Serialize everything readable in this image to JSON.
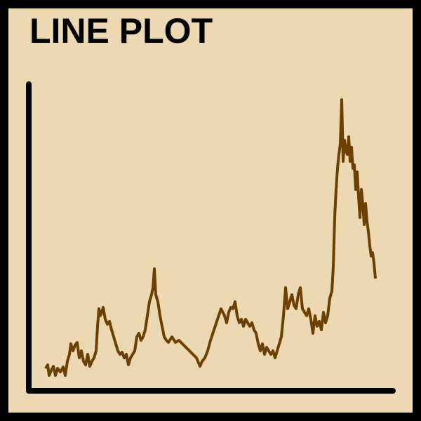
{
  "chart_data": {
    "type": "line",
    "title": "LINE PLOT",
    "color": "#6b4000",
    "xlim": [
      0,
      520
    ],
    "ylim": [
      0,
      437
    ],
    "x": [
      25,
      28,
      30,
      33,
      36,
      39,
      42,
      46,
      50,
      53,
      56,
      59,
      61,
      64,
      67,
      70,
      73,
      76,
      79,
      82,
      85,
      88,
      91,
      94,
      97,
      99,
      101,
      103,
      105,
      107,
      110,
      113,
      116,
      119,
      122,
      125,
      128,
      131,
      134,
      137,
      140,
      143,
      146,
      149,
      152,
      155,
      158,
      161,
      164,
      167,
      170,
      173,
      176,
      178,
      180,
      182,
      185,
      188,
      191,
      194,
      197,
      200,
      205,
      210,
      215,
      220,
      225,
      230,
      235,
      240,
      245,
      248,
      252,
      256,
      260,
      265,
      270,
      275,
      280,
      283,
      286,
      289,
      292,
      295,
      298,
      301,
      304,
      307,
      310,
      313,
      316,
      319,
      322,
      325,
      328,
      331,
      334,
      337,
      340,
      343,
      346,
      349,
      352,
      355,
      358,
      361,
      364,
      367,
      370,
      373,
      376,
      379,
      382,
      385,
      388,
      391,
      394,
      397,
      400,
      403,
      406,
      409,
      412,
      415,
      418,
      421,
      424,
      427,
      430,
      433,
      435,
      437,
      439,
      441,
      443,
      445,
      447,
      449,
      451,
      453,
      455,
      457,
      459,
      461,
      463,
      465,
      467,
      469,
      471,
      473,
      475,
      477,
      479,
      481,
      483,
      485,
      487,
      489,
      491,
      493,
      495
    ],
    "values": [
      32,
      37,
      22,
      29,
      35,
      22,
      32,
      27,
      34,
      22,
      42,
      52,
      67,
      57,
      65,
      69,
      47,
      57,
      42,
      37,
      52,
      35,
      42,
      47,
      57,
      92,
      117,
      107,
      112,
      119,
      102,
      95,
      99,
      87,
      77,
      67,
      57,
      52,
      55,
      47,
      52,
      37,
      47,
      52,
      57,
      77,
      82,
      72,
      77,
      87,
      107,
      127,
      137,
      147,
      174,
      137,
      127,
      107,
      92,
      77,
      72,
      69,
      77,
      69,
      72,
      67,
      62,
      57,
      52,
      47,
      35,
      42,
      47,
      57,
      72,
      87,
      102,
      117,
      107,
      97,
      112,
      119,
      117,
      127,
      107,
      97,
      102,
      92,
      102,
      97,
      92,
      97,
      87,
      82,
      67,
      57,
      67,
      52,
      62,
      57,
      52,
      57,
      47,
      57,
      67,
      77,
      107,
      147,
      117,
      127,
      137,
      122,
      117,
      137,
      147,
      117,
      112,
      107,
      117,
      102,
      82,
      107,
      92,
      99,
      87,
      112,
      97,
      107,
      132,
      142,
      177,
      247,
      287,
      317,
      337,
      352,
      415,
      327,
      357,
      342,
      337,
      362,
      327,
      347,
      317,
      322,
      287,
      312,
      277,
      247,
      287,
      267,
      237,
      267,
      242,
      227,
      207,
      192,
      197,
      182,
      160
    ]
  }
}
